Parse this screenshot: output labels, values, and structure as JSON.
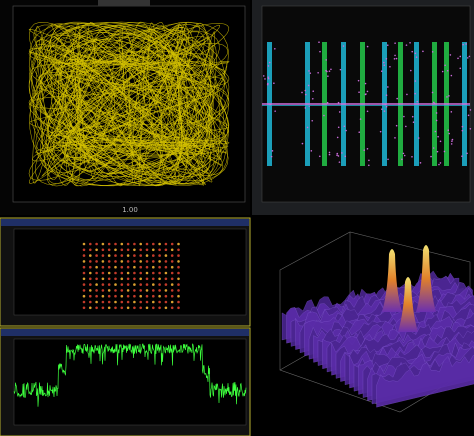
{
  "screen": {
    "lissajous_panel": {
      "x_tick": "1.00"
    }
  }
}
